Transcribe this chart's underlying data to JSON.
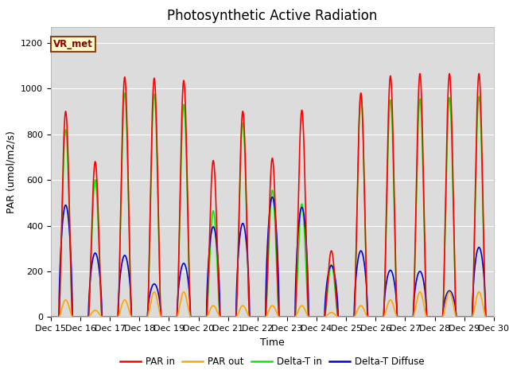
{
  "title": "Photosynthetic Active Radiation",
  "ylabel": "PAR (umol/m2/s)",
  "xlabel": "Time",
  "xlim_days": [
    15,
    30
  ],
  "ylim": [
    0,
    1270
  ],
  "yticks": [
    0,
    200,
    400,
    600,
    800,
    1000,
    1200
  ],
  "bg_color": "#dcdcdc",
  "fig_color": "#ffffff",
  "legend_label": "VR_met",
  "series_colors": {
    "PAR_in": "#ff0000",
    "PAR_out": "#ffa500",
    "Delta_T_in": "#00ee00",
    "Delta_T_Diffuse": "#0000dd"
  },
  "legend_entries": [
    "PAR in",
    "PAR out",
    "Delta-T in",
    "Delta-T Diffuse"
  ],
  "peak_days": [
    15,
    16,
    17,
    18,
    19,
    20,
    21,
    22,
    23,
    24,
    25,
    26,
    27,
    28,
    29
  ],
  "par_in_peaks": [
    900,
    680,
    1050,
    1045,
    1035,
    685,
    900,
    695,
    905,
    290,
    980,
    1055,
    1065,
    1065,
    1065
  ],
  "par_out_peaks": [
    75,
    30,
    75,
    110,
    110,
    50,
    50,
    50,
    50,
    20,
    50,
    75,
    110,
    110,
    110
  ],
  "delta_t_in_peaks": [
    820,
    600,
    980,
    975,
    930,
    465,
    850,
    555,
    495,
    230,
    975,
    950,
    955,
    960,
    965
  ],
  "delta_t_diff_peaks": [
    490,
    280,
    270,
    145,
    235,
    395,
    410,
    525,
    480,
    225,
    290,
    205,
    200,
    115,
    305
  ],
  "title_fontsize": 12,
  "axis_fontsize": 9,
  "tick_fontsize": 8,
  "linewidth": 1.2
}
